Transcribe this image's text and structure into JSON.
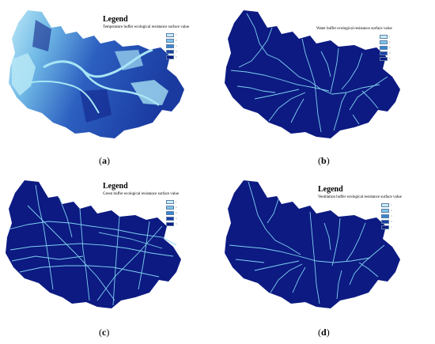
{
  "panels": [
    {
      "id": "a",
      "legend_title": "Legend",
      "legend_caption": "Temperature buffer ecological resistance surface value",
      "label_open": "(",
      "label_letter": "a",
      "label_close": ")",
      "legend_classes": [
        "1",
        "2",
        "3",
        "4",
        "5"
      ]
    },
    {
      "id": "b",
      "legend_title": "Legend",
      "legend_caption": "Water buffer ecological resistance surface value",
      "label_open": "(",
      "label_letter": "b",
      "label_close": ")",
      "legend_classes": [
        "1",
        "2",
        "3",
        "4",
        "5"
      ]
    },
    {
      "id": "c",
      "legend_title": "Legend",
      "legend_caption": "Green buffer ecological resistance surface value",
      "label_open": "(",
      "label_letter": "c",
      "label_close": ")",
      "legend_classes": [
        "1",
        "2",
        "3",
        "4",
        "5"
      ]
    },
    {
      "id": "d",
      "legend_title": "Legend",
      "legend_caption": "Ventilation buffer ecological resistance surface value",
      "label_open": "(",
      "label_letter": "d",
      "label_close": ")",
      "legend_classes": [
        "1",
        "2",
        "3",
        "4",
        "5"
      ]
    }
  ],
  "colors": {
    "legend_ramp": [
      "#c9eef9",
      "#7fc4e8",
      "#3a86cf",
      "#1d3fa6",
      "#0c1a82"
    ],
    "region_fill": "#0c1a82",
    "corridor_line": "#7fd0ee",
    "temperature_light": "#9fdff2",
    "temperature_mid": "#3f7fd0"
  }
}
